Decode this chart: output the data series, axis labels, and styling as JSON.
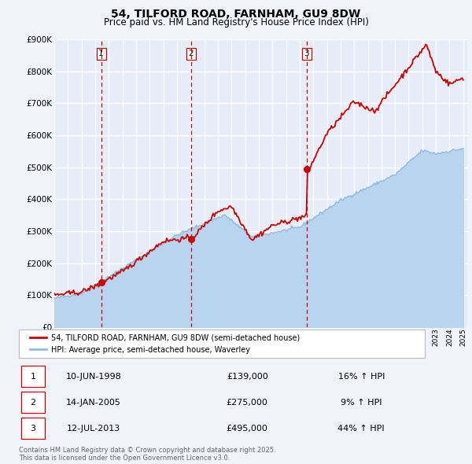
{
  "title": "54, TILFORD ROAD, FARNHAM, GU9 8DW",
  "subtitle": "Price paid vs. HM Land Registry's House Price Index (HPI)",
  "bg_color": "#f0f4fa",
  "plot_bg_color": "#e6ecf8",
  "grid_color": "#d0d8ee",
  "sale_color": "#cc0000",
  "hpi_color": "#90bce0",
  "hpi_fill_color": "#b8d4ee",
  "vline_color": "#cc0000",
  "ylim": [
    0,
    900000
  ],
  "yticks": [
    0,
    100000,
    200000,
    300000,
    400000,
    500000,
    600000,
    700000,
    800000,
    900000
  ],
  "vlines": [
    1998.44,
    2005.04,
    2013.52
  ],
  "legend_sale_label": "54, TILFORD ROAD, FARNHAM, GU9 8DW (semi-detached house)",
  "legend_hpi_label": "HPI: Average price, semi-detached house, Waverley",
  "table_data": [
    {
      "num": "1",
      "date": "10-JUN-1998",
      "price": "£139,000",
      "pct": "16% ↑ HPI"
    },
    {
      "num": "2",
      "date": "14-JAN-2005",
      "price": "£275,000",
      "pct": "9% ↑ HPI"
    },
    {
      "num": "3",
      "date": "12-JUL-2013",
      "price": "£495,000",
      "pct": "44% ↑ HPI"
    }
  ],
  "footnote": "Contains HM Land Registry data © Crown copyright and database right 2025.\nThis data is licensed under the Open Government Licence v3.0."
}
